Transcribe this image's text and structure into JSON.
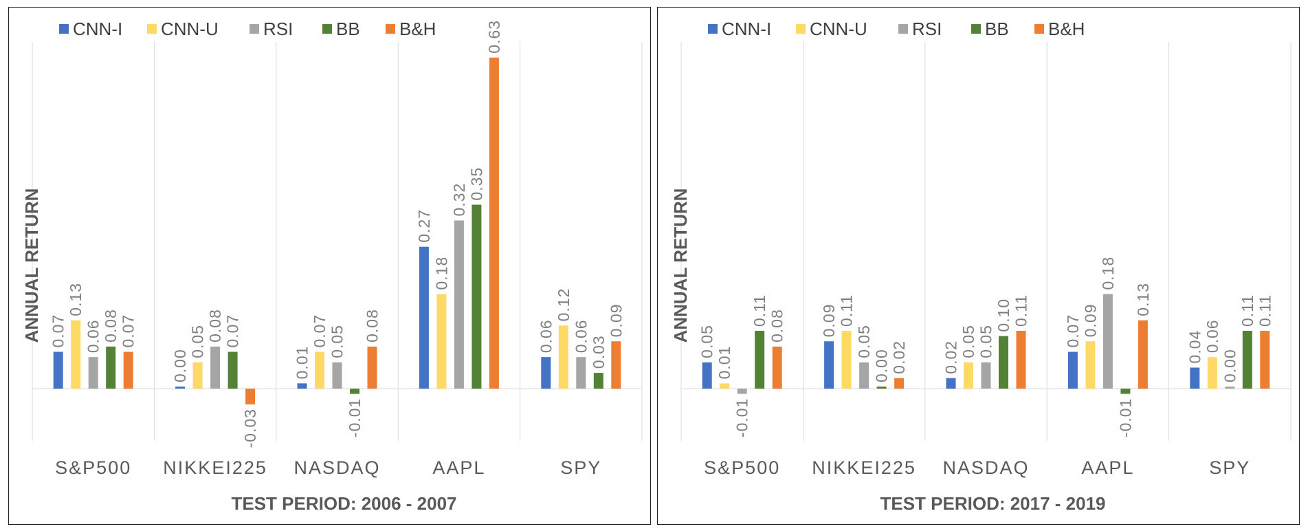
{
  "chart_data": [
    {
      "type": "bar",
      "xlabel": "TEST PERIOD: 2006 - 2007",
      "ylabel": "ANNUAL RETURN",
      "categories": [
        "S&P500",
        "NIKKEI225",
        "NASDAQ",
        "AAPL",
        "SPY"
      ],
      "series": [
        {
          "name": "CNN-I",
          "color": "#4472c4",
          "values": [
            0.07,
            0.0,
            0.01,
            0.27,
            0.06
          ]
        },
        {
          "name": "CNN-U",
          "color": "#ffd966",
          "values": [
            0.13,
            0.05,
            0.07,
            0.18,
            0.12
          ]
        },
        {
          "name": "RSI",
          "color": "#a5a5a5",
          "values": [
            0.06,
            0.08,
            0.05,
            0.32,
            0.06
          ]
        },
        {
          "name": "BB",
          "color": "#548235",
          "values": [
            0.08,
            0.07,
            -0.01,
            0.35,
            0.03
          ]
        },
        {
          "name": "B&H",
          "color": "#ed7d31",
          "values": [
            0.07,
            -0.03,
            0.08,
            0.63,
            0.09
          ]
        }
      ],
      "ylim": [
        -0.1,
        0.66
      ],
      "grid": "vertical",
      "legend": "top-left"
    },
    {
      "type": "bar",
      "xlabel": "TEST PERIOD: 2017 - 2019",
      "ylabel": "ANNUAL RETURN",
      "categories": [
        "S&P500",
        "NIKKEI225",
        "NASDAQ",
        "AAPL",
        "SPY"
      ],
      "series": [
        {
          "name": "CNN-I",
          "color": "#4472c4",
          "values": [
            0.05,
            0.09,
            0.02,
            0.07,
            0.04
          ]
        },
        {
          "name": "CNN-U",
          "color": "#ffd966",
          "values": [
            0.01,
            0.11,
            0.05,
            0.09,
            0.06
          ]
        },
        {
          "name": "RSI",
          "color": "#a5a5a5",
          "values": [
            -0.01,
            0.05,
            0.05,
            0.18,
            0.0
          ]
        },
        {
          "name": "BB",
          "color": "#548235",
          "values": [
            0.11,
            0.0,
            0.1,
            -0.01,
            0.11
          ]
        },
        {
          "name": "B&H",
          "color": "#ed7d31",
          "values": [
            0.08,
            0.02,
            0.11,
            0.13,
            0.11
          ]
        }
      ],
      "ylim": [
        -0.1,
        0.66
      ],
      "grid": "vertical",
      "legend": "top-left"
    }
  ]
}
